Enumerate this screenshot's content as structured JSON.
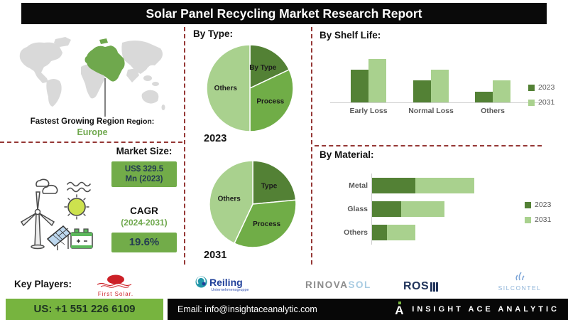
{
  "title": "Solar Panel Recycling Market Research Report",
  "region": {
    "label": "Fastest Growing Region",
    "label_suffix": "Region:",
    "value": "Europe"
  },
  "market": {
    "size_heading": "Market Size:",
    "size_value_line1": "US$ 329.5",
    "size_value_line2": "Mn (2023)",
    "cagr_heading": "CAGR",
    "cagr_period": "(2024-2031)",
    "cagr_value": "19.6%"
  },
  "chart_data": [
    {
      "type": "pie",
      "title": "By Type:",
      "year_label": "2023",
      "legend_position": "none",
      "slices": [
        {
          "label": "By Type",
          "pct": 18,
          "color": "#538135"
        },
        {
          "label": "Process",
          "pct": 32,
          "color": "#70AD47"
        },
        {
          "label": "Others",
          "pct": 50,
          "color": "#A9D18E"
        }
      ]
    },
    {
      "type": "pie",
      "title": "By Type:",
      "year_label": "2031",
      "legend_position": "none",
      "slices": [
        {
          "label": "Type",
          "pct": 23.5,
          "color": "#538135"
        },
        {
          "label": "Process",
          "pct": 33.5,
          "color": "#70AD47"
        },
        {
          "label": "Others",
          "pct": 43,
          "color": "#A9D18E"
        }
      ]
    },
    {
      "type": "bar",
      "title": "By Shelf Life:",
      "categories": [
        "Early Loss",
        "Normal Loss",
        "Others"
      ],
      "series": [
        {
          "name": "2023",
          "color": "#538135",
          "values": [
            48,
            32,
            16
          ]
        },
        {
          "name": "2031",
          "color": "#A9D18E",
          "values": [
            64,
            48,
            32
          ]
        }
      ],
      "ylim": [
        0,
        70
      ],
      "grid": false,
      "legend_position": "right"
    },
    {
      "type": "bar-horizontal-stacked",
      "title": "By Material:",
      "categories": [
        "Metal",
        "Glass",
        "Others"
      ],
      "series": [
        {
          "name": "2023",
          "color": "#538135",
          "values": [
            61,
            41,
            21
          ]
        },
        {
          "name": "2031",
          "color": "#A9D18E",
          "values": [
            83,
            61,
            40
          ]
        }
      ],
      "xlim": [
        0,
        150
      ],
      "grid": false,
      "legend_position": "right"
    }
  ],
  "key_players": {
    "heading": "Key Players:",
    "players": [
      {
        "name": "First Solar",
        "logo_text": "First Solar."
      },
      {
        "name": "Reiling",
        "logo_text": "Reiling",
        "logo_subtext": "Unternehmensgruppe"
      },
      {
        "name": "RINOVASOL",
        "logo_text_1": "RINOVA",
        "logo_text_2": "SOL"
      },
      {
        "name": "ROSI",
        "logo_text": "ROS"
      },
      {
        "name": "SILCONTEL",
        "logo_text": "SILCONTEL"
      }
    ]
  },
  "footer": {
    "phone": "US: +1 551 226 6109",
    "email": "Email: info@insightaceanalytic.com",
    "brand": "INSIGHT ACE ANALYTIC",
    "brand_initial": "A"
  },
  "colors": {
    "accent_dark_green": "#538135",
    "accent_green": "#70AD47",
    "accent_light_green": "#A9D18E",
    "cta_green": "#77B43F",
    "dashed_divider": "#953735",
    "banner_bg": "#0a0a0a",
    "europe_highlight": "#6FA84D",
    "map_land": "#d9d9d9"
  }
}
